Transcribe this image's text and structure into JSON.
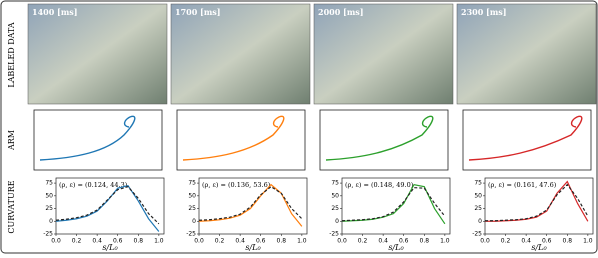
{
  "row_labels": [
    "LABELED DATA",
    "ARM",
    "CURVATURE"
  ],
  "chart_data": [
    {
      "type": "line",
      "title": "1400 [ms]",
      "annotation": "(ρ, ε) = (0.124, 44.3)",
      "xlabel": "s/L₀",
      "x": [
        0,
        0.1,
        0.2,
        0.3,
        0.4,
        0.5,
        0.6,
        0.7,
        0.8,
        0.9,
        1.0
      ],
      "series": [
        {
          "color": "#1f77b4",
          "style": "solid",
          "values": [
            0,
            2,
            5,
            10,
            20,
            40,
            65,
            70,
            40,
            5,
            -20
          ]
        },
        {
          "color": "#222222",
          "style": "dashed",
          "values": [
            2,
            4,
            7,
            12,
            22,
            42,
            62,
            68,
            45,
            15,
            -5
          ]
        }
      ],
      "xlim": [
        0,
        1.05
      ],
      "ylim": [
        -25,
        85
      ],
      "xticks": [
        {
          "value": 0,
          "label": "0.0"
        },
        {
          "value": 0.2,
          "label": "0.2"
        },
        {
          "value": 0.4,
          "label": "0.4"
        },
        {
          "value": 0.6,
          "label": "0.6"
        },
        {
          "value": 0.8,
          "label": "0.8"
        },
        {
          "value": 1,
          "label": "1.0"
        }
      ],
      "yticks": [
        -25,
        0,
        25,
        50,
        75
      ]
    },
    {
      "type": "line",
      "title": "1700 [ms]",
      "annotation": "(ρ, ε) = (0.136, 53.6)",
      "xlabel": "s/L₀",
      "x": [
        0,
        0.1,
        0.2,
        0.3,
        0.4,
        0.5,
        0.6,
        0.7,
        0.8,
        0.9,
        1.0
      ],
      "series": [
        {
          "color": "#ff7f0e",
          "style": "solid",
          "values": [
            0,
            1,
            3,
            6,
            12,
            25,
            50,
            72,
            55,
            15,
            -10
          ]
        },
        {
          "color": "#222222",
          "style": "dashed",
          "values": [
            2,
            3,
            5,
            8,
            14,
            28,
            52,
            68,
            55,
            25,
            5
          ]
        }
      ],
      "xlim": [
        0,
        1.05
      ],
      "ylim": [
        -25,
        85
      ],
      "xticks": [
        {
          "value": 0,
          "label": "0.0"
        },
        {
          "value": 0.2,
          "label": "0.2"
        },
        {
          "value": 0.4,
          "label": "0.4"
        },
        {
          "value": 0.6,
          "label": "0.6"
        },
        {
          "value": 0.8,
          "label": "0.8"
        },
        {
          "value": 1,
          "label": "1.0"
        }
      ],
      "yticks": [
        -25,
        0,
        25,
        50,
        75
      ]
    },
    {
      "type": "line",
      "title": "2000 [ms]",
      "annotation": "(ρ, ε) = (0.148, 49.0)",
      "xlabel": "s/L₀",
      "x": [
        0,
        0.1,
        0.2,
        0.3,
        0.4,
        0.5,
        0.6,
        0.7,
        0.8,
        0.9,
        1.0
      ],
      "series": [
        {
          "color": "#2ca02c",
          "style": "solid",
          "values": [
            0,
            1,
            2,
            4,
            8,
            15,
            35,
            72,
            68,
            25,
            -5
          ]
        },
        {
          "color": "#222222",
          "style": "dashed",
          "values": [
            1,
            2,
            3,
            5,
            9,
            18,
            38,
            66,
            65,
            35,
            10
          ]
        }
      ],
      "xlim": [
        0,
        1.05
      ],
      "ylim": [
        -25,
        85
      ],
      "xticks": [
        {
          "value": 0,
          "label": "0.0"
        },
        {
          "value": 0.2,
          "label": "0.2"
        },
        {
          "value": 0.4,
          "label": "0.4"
        },
        {
          "value": 0.6,
          "label": "0.6"
        },
        {
          "value": 0.8,
          "label": "0.8"
        },
        {
          "value": 1,
          "label": "1.0"
        }
      ],
      "yticks": [
        -25,
        0,
        25,
        50,
        75
      ]
    },
    {
      "type": "line",
      "title": "2300 [ms]",
      "annotation": "(ρ, ε) = (0.161, 47.6)",
      "xlabel": "s/L₀",
      "x": [
        0,
        0.1,
        0.2,
        0.3,
        0.4,
        0.5,
        0.6,
        0.7,
        0.8,
        0.9,
        1.0
      ],
      "series": [
        {
          "color": "#d62728",
          "style": "solid",
          "values": [
            0,
            0,
            1,
            2,
            4,
            8,
            20,
            55,
            78,
            35,
            0
          ]
        },
        {
          "color": "#222222",
          "style": "dashed",
          "values": [
            1,
            1,
            2,
            3,
            5,
            10,
            22,
            52,
            72,
            45,
            10
          ]
        }
      ],
      "xlim": [
        0,
        1.05
      ],
      "ylim": [
        -25,
        85
      ],
      "xticks": [
        {
          "value": 0,
          "label": "0.0"
        },
        {
          "value": 0.2,
          "label": "0.2"
        },
        {
          "value": 0.4,
          "label": "0.4"
        },
        {
          "value": 0.6,
          "label": "0.6"
        },
        {
          "value": 0.8,
          "label": "0.8"
        },
        {
          "value": 1,
          "label": "1.0"
        }
      ],
      "yticks": [
        -25,
        0,
        25,
        50,
        75
      ]
    }
  ]
}
